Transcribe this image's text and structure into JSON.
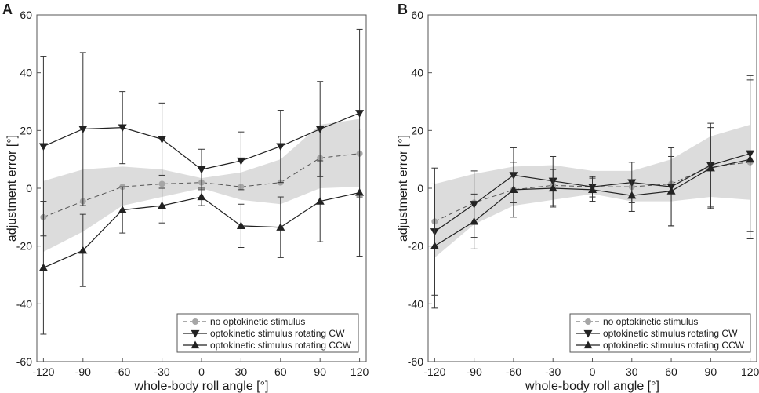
{
  "chart_data": [
    {
      "type": "line",
      "panel_label": "A",
      "xlabel": "whole-body roll angle [°]",
      "ylabel": "adjustment error [°]",
      "x": [
        -120,
        -90,
        -60,
        -30,
        0,
        30,
        60,
        90,
        120
      ],
      "xlim": [
        -125,
        125
      ],
      "ylim": [
        -60,
        60
      ],
      "xticks": [
        -120,
        -90,
        -60,
        -30,
        0,
        30,
        60,
        90,
        120
      ],
      "yticks": [
        -60,
        -40,
        -20,
        0,
        20,
        40,
        60
      ],
      "xtick_labels": [
        "-120",
        "-90",
        "-60",
        "-30",
        "0",
        "30",
        "60",
        "90",
        "120"
      ],
      "ytick_labels": [
        "-60",
        "-40",
        "-20",
        "0",
        "20",
        "40",
        "60"
      ],
      "legend_position": "bottom-right",
      "band": {
        "upper": [
          2.5,
          6.5,
          7.5,
          6.5,
          3.5,
          5.5,
          10,
          22,
          24
        ],
        "lower": [
          -22,
          -15,
          -6,
          -3,
          0,
          -4,
          -5.5,
          0,
          0.5
        ]
      },
      "series": [
        {
          "name": "no optokinetic stimulus",
          "marker": "circle",
          "style": "dashed",
          "values": [
            -10,
            -4.5,
            0.5,
            1.5,
            2,
            0.5,
            2,
            10.5,
            12
          ]
        },
        {
          "name": "optokinetic stimulus rotating CW",
          "marker": "triangle-down",
          "style": "solid",
          "values": [
            14.5,
            20.5,
            21,
            17,
            6.5,
            9.5,
            14.5,
            20.5,
            26
          ],
          "error": [
            31,
            26.5,
            12.5,
            12.5,
            7,
            10,
            12.5,
            16.5,
            29
          ]
        },
        {
          "name": "optokinetic stimulus rotating CCW",
          "marker": "triangle-up",
          "style": "solid",
          "values": [
            -27.5,
            -21.5,
            -7.5,
            -6,
            -3,
            -13,
            -13.5,
            -4.5,
            -1.5
          ],
          "error": [
            23,
            12.5,
            8,
            6,
            3,
            7.5,
            10.5,
            14,
            22
          ]
        }
      ]
    },
    {
      "type": "line",
      "panel_label": "B",
      "xlabel": "whole-body roll angle [°]",
      "ylabel": "adjustment error [°]",
      "x": [
        -120,
        -90,
        -60,
        -30,
        0,
        30,
        60,
        90,
        120
      ],
      "xlim": [
        -125,
        125
      ],
      "ylim": [
        -60,
        60
      ],
      "xticks": [
        -120,
        -90,
        -60,
        -30,
        0,
        30,
        60,
        90,
        120
      ],
      "yticks": [
        -60,
        -40,
        -20,
        0,
        20,
        40,
        60
      ],
      "xtick_labels": [
        "-120",
        "-90",
        "-60",
        "-30",
        "0",
        "30",
        "60",
        "90",
        "120"
      ],
      "ytick_labels": [
        "-60",
        "-40",
        "-20",
        "0",
        "20",
        "40",
        "60"
      ],
      "legend_position": "bottom-right",
      "band": {
        "upper": [
          1.5,
          5,
          7.5,
          8,
          6,
          6,
          10,
          18,
          22
        ],
        "lower": [
          -24,
          -12.5,
          -6,
          -4,
          -2,
          -4.5,
          -4.5,
          -3,
          -4
        ]
      },
      "series": [
        {
          "name": "no optokinetic stimulus",
          "marker": "circle",
          "style": "dashed",
          "values": [
            -11.5,
            -5,
            -0.5,
            1,
            0.5,
            0.5,
            1.5,
            7.5,
            9
          ]
        },
        {
          "name": "optokinetic stimulus rotating CW",
          "marker": "triangle-down",
          "style": "solid",
          "values": [
            -15,
            -5.5,
            4.5,
            2.5,
            0.5,
            2,
            0.5,
            8,
            12
          ],
          "error": [
            22,
            11.5,
            9.5,
            8.5,
            3.5,
            7,
            13.5,
            14.5,
            27
          ]
        },
        {
          "name": "optokinetic stimulus rotating CCW",
          "marker": "triangle-up",
          "style": "solid",
          "values": [
            -20,
            -11.5,
            -0.5,
            0,
            -0.5,
            -2.5,
            -1,
            7,
            10
          ],
          "error": [
            21.5,
            9.5,
            9.5,
            6.5,
            4,
            5.5,
            12,
            14,
            27.5
          ]
        }
      ]
    }
  ]
}
